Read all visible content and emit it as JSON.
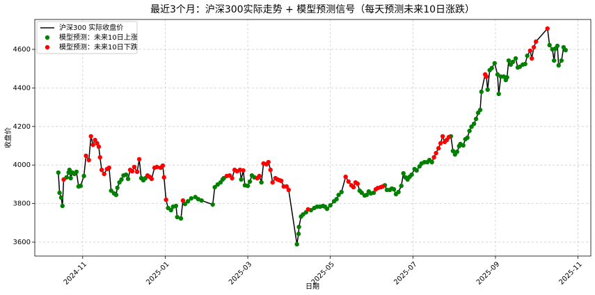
{
  "chart_data": {
    "type": "line",
    "title": "最近3个月：沪深300实际走势 + 模型预测信号（每天预测未来10日涨跌）",
    "xlabel": "日期",
    "ylabel": "收盘价",
    "grid": true,
    "legend": "upper left",
    "xlim": [
      -1.16,
      12.31
    ],
    "xticks": [
      {
        "value": 0,
        "label": "2024-11"
      },
      {
        "value": 2,
        "label": "2025-01"
      },
      {
        "value": 4,
        "label": "2025-03"
      },
      {
        "value": 6,
        "label": "2025-05"
      },
      {
        "value": 8,
        "label": "2025-07"
      },
      {
        "value": 10,
        "label": "2025-09"
      },
      {
        "value": 12,
        "label": "2025-11"
      }
    ],
    "ylim": [
      3528,
      4755
    ],
    "yticks": [
      3600,
      3800,
      4000,
      4200,
      4400,
      4600
    ],
    "x": [
      -0.59,
      -0.56,
      -0.52,
      -0.49,
      -0.46,
      -0.39,
      -0.34,
      -0.32,
      -0.29,
      -0.25,
      -0.2,
      -0.15,
      -0.1,
      -0.05,
      0.03,
      0.08,
      0.15,
      0.2,
      0.25,
      0.3,
      0.35,
      0.39,
      0.42,
      0.46,
      0.52,
      0.59,
      0.64,
      0.69,
      0.76,
      0.81,
      0.84,
      0.89,
      0.94,
      0.99,
      1.05,
      1.1,
      1.15,
      1.2,
      1.25,
      1.32,
      1.37,
      1.42,
      1.47,
      1.52,
      1.57,
      1.62,
      1.67,
      1.74,
      1.8,
      1.89,
      1.94,
      1.97,
      2.02,
      2.07,
      2.14,
      2.19,
      2.26,
      2.29,
      2.38,
      2.43,
      2.48,
      2.55,
      2.63,
      2.73,
      2.8,
      2.88,
      3.15,
      3.2,
      3.27,
      3.34,
      3.39,
      3.42,
      3.49,
      3.56,
      3.62,
      3.68,
      3.74,
      3.81,
      3.84,
      3.89,
      3.93,
      4.0,
      4.05,
      4.1,
      4.16,
      4.23,
      4.28,
      4.33,
      4.38,
      4.45,
      4.5,
      4.55,
      4.6,
      4.67,
      4.72,
      4.77,
      4.81,
      4.87,
      4.94,
      4.99,
      5.19,
      5.23,
      5.24,
      5.29,
      5.34,
      5.41,
      5.46,
      5.53,
      5.61,
      5.68,
      5.75,
      5.82,
      5.87,
      5.92,
      6.0,
      6.09,
      6.15,
      6.2,
      6.27,
      6.37,
      6.44,
      6.51,
      6.56,
      6.61,
      6.66,
      6.71,
      6.76,
      6.83,
      6.88,
      6.93,
      6.98,
      7.05,
      7.1,
      7.15,
      7.22,
      7.27,
      7.32,
      7.37,
      7.44,
      7.49,
      7.54,
      7.59,
      7.65,
      7.72,
      7.77,
      7.82,
      7.87,
      7.92,
      7.97,
      8.04,
      8.09,
      8.16,
      8.21,
      8.28,
      8.35,
      8.4,
      8.46,
      8.51,
      8.56,
      8.62,
      8.67,
      8.72,
      8.77,
      8.82,
      8.87,
      8.92,
      8.97,
      9.02,
      9.07,
      9.12,
      9.15,
      9.22,
      9.27,
      9.32,
      9.37,
      9.42,
      9.48,
      9.53,
      9.58,
      9.63,
      9.66,
      9.75,
      9.78,
      9.81,
      9.86,
      9.91,
      9.98,
      10.05,
      10.08,
      10.13,
      10.2,
      10.25,
      10.28,
      10.32,
      10.37,
      10.42,
      10.49,
      10.54,
      10.59,
      10.66,
      10.72,
      10.77,
      10.84,
      10.88,
      10.93,
      10.98,
      11.26,
      11.31,
      11.38,
      11.42,
      11.45,
      11.5,
      11.53,
      11.6,
      11.65,
      11.7
    ],
    "series": [
      {
        "name": "沪深300 实际收盘价",
        "color": "#000000",
        "values": [
          3961,
          3856,
          3831,
          3788,
          3925,
          3936,
          3961,
          3975,
          3932,
          3961,
          3954,
          3965,
          3889,
          3892,
          3943,
          4048,
          4026,
          4149,
          4105,
          4130,
          4113,
          4095,
          4040,
          3975,
          3954,
          3979,
          3986,
          3867,
          3853,
          3845,
          3882,
          3910,
          3925,
          3946,
          3950,
          3928,
          3975,
          3968,
          3990,
          3965,
          4030,
          3932,
          3921,
          3932,
          3946,
          3939,
          3928,
          3986,
          3990,
          3986,
          3997,
          3936,
          3820,
          3777,
          3766,
          3784,
          3788,
          3730,
          3723,
          3816,
          3798,
          3812,
          3827,
          3834,
          3823,
          3816,
          3795,
          3885,
          3899,
          3910,
          3925,
          3932,
          3943,
          3946,
          3932,
          3975,
          3968,
          3975,
          3925,
          3972,
          3895,
          3892,
          3914,
          3946,
          3936,
          3932,
          3943,
          3910,
          4008,
          4004,
          4015,
          3975,
          3910,
          3932,
          3925,
          3921,
          3918,
          3889,
          3889,
          3871,
          3589,
          3643,
          3679,
          3733,
          3744,
          3755,
          3770,
          3766,
          3777,
          3784,
          3784,
          3788,
          3784,
          3773,
          3791,
          3812,
          3823,
          3845,
          3860,
          3939,
          3914,
          3895,
          3885,
          3910,
          3903,
          3867,
          3856,
          3842,
          3845,
          3863,
          3853,
          3856,
          3874,
          3881,
          3885,
          3889,
          3895,
          3871,
          3871,
          3878,
          3874,
          3849,
          3860,
          3892,
          3957,
          3936,
          3925,
          3939,
          3950,
          3979,
          3972,
          3993,
          4008,
          4015,
          4015,
          4026,
          4015,
          4040,
          4062,
          4087,
          4113,
          4149,
          4120,
          4130,
          4145,
          4149,
          4073,
          4055,
          4069,
          4098,
          4109,
          4102,
          4134,
          4142,
          4177,
          4199,
          4214,
          4239,
          4271,
          4286,
          4380,
          4470,
          4459,
          4391,
          4492,
          4503,
          4528,
          4470,
          4369,
          4459,
          4459,
          4441,
          4455,
          4542,
          4521,
          4535,
          4553,
          4506,
          4510,
          4521,
          4524,
          4567,
          4593,
          4553,
          4611,
          4640,
          4708,
          4622,
          4600,
          4542,
          4604,
          4618,
          4517,
          4542,
          4611,
          4596
        ]
      },
      {
        "name": "模型预测：未来10日上涨",
        "color": "#008000",
        "x": [
          -0.59,
          -0.56,
          -0.52,
          -0.49,
          -0.39,
          -0.34,
          -0.32,
          -0.29,
          -0.25,
          -0.2,
          -0.15,
          -0.1,
          -0.05,
          0.03,
          0.69,
          0.76,
          0.81,
          0.84,
          0.89,
          0.94,
          0.99,
          1.05,
          1.1,
          1.42,
          1.47,
          1.52,
          2.07,
          2.14,
          2.19,
          2.26,
          2.29,
          2.38,
          2.48,
          2.55,
          2.63,
          2.73,
          2.8,
          2.88,
          3.15,
          3.2,
          3.27,
          3.34,
          3.39,
          3.42,
          3.84,
          3.93,
          4.0,
          4.05,
          4.1,
          4.16,
          4.33,
          5.19,
          5.23,
          5.24,
          5.29,
          5.34,
          5.41,
          5.53,
          5.61,
          5.68,
          5.75,
          5.82,
          5.87,
          5.92,
          6.0,
          6.09,
          6.15,
          6.2,
          6.27,
          6.71,
          6.76,
          6.83,
          6.88,
          6.93,
          6.98,
          7.05,
          7.32,
          7.37,
          7.44,
          7.49,
          7.54,
          7.59,
          7.65,
          7.72,
          7.77,
          7.82,
          7.87,
          7.92,
          7.97,
          8.04,
          8.09,
          8.16,
          8.21,
          8.28,
          8.35,
          8.4,
          8.46,
          8.92,
          8.97,
          9.02,
          9.07,
          9.12,
          9.15,
          9.22,
          9.27,
          9.32,
          9.37,
          9.42,
          9.48,
          9.53,
          9.58,
          9.63,
          9.66,
          9.81,
          9.86,
          9.91,
          9.98,
          10.05,
          10.08,
          10.13,
          10.2,
          10.25,
          10.28,
          10.32,
          10.37,
          10.42,
          10.49,
          10.54,
          10.59,
          10.66,
          10.72,
          10.77,
          11.31,
          11.38,
          11.42,
          11.45,
          11.5,
          11.53,
          11.6,
          11.65,
          11.7
        ],
        "values": [
          3961,
          3856,
          3831,
          3788,
          3936,
          3961,
          3975,
          3932,
          3961,
          3954,
          3965,
          3889,
          3892,
          3943,
          3867,
          3853,
          3845,
          3882,
          3910,
          3925,
          3946,
          3950,
          3928,
          3932,
          3921,
          3932,
          3777,
          3766,
          3784,
          3788,
          3730,
          3723,
          3798,
          3812,
          3827,
          3834,
          3823,
          3816,
          3795,
          3885,
          3899,
          3910,
          3925,
          3932,
          3925,
          3895,
          3892,
          3914,
          3946,
          3936,
          3910,
          3589,
          3643,
          3679,
          3733,
          3744,
          3755,
          3766,
          3777,
          3784,
          3784,
          3788,
          3784,
          3773,
          3791,
          3812,
          3823,
          3845,
          3860,
          3867,
          3856,
          3842,
          3845,
          3863,
          3853,
          3856,
          3895,
          3871,
          3871,
          3878,
          3874,
          3849,
          3860,
          3892,
          3957,
          3936,
          3925,
          3939,
          3950,
          3979,
          3972,
          3993,
          4008,
          4015,
          4015,
          4026,
          4015,
          4149,
          4073,
          4055,
          4069,
          4098,
          4109,
          4102,
          4134,
          4142,
          4177,
          4199,
          4214,
          4239,
          4271,
          4286,
          4380,
          4391,
          4492,
          4503,
          4528,
          4470,
          4369,
          4459,
          4459,
          4441,
          4455,
          4542,
          4521,
          4535,
          4553,
          4506,
          4510,
          4521,
          4524,
          4567,
          4622,
          4600,
          4542,
          4604,
          4618,
          4517,
          4542,
          4611,
          4596
        ]
      },
      {
        "name": "模型预测：未来10日下跌",
        "color": "#ff0000",
        "x": [
          -0.46,
          0.08,
          0.15,
          0.2,
          0.25,
          0.3,
          0.35,
          0.39,
          0.42,
          0.46,
          0.52,
          0.59,
          0.64,
          1.15,
          1.2,
          1.25,
          1.32,
          1.37,
          1.57,
          1.62,
          1.67,
          1.74,
          1.8,
          1.89,
          1.94,
          1.97,
          2.02,
          2.43,
          3.49,
          3.56,
          3.62,
          3.68,
          3.74,
          3.81,
          3.89,
          4.23,
          4.28,
          4.38,
          4.45,
          4.5,
          4.55,
          4.6,
          4.67,
          4.72,
          4.77,
          4.81,
          4.87,
          4.94,
          4.99,
          5.46,
          6.37,
          6.44,
          6.51,
          6.56,
          6.61,
          6.66,
          7.1,
          7.15,
          7.22,
          7.27,
          8.51,
          8.56,
          8.62,
          8.67,
          8.72,
          8.77,
          8.82,
          8.87,
          9.75,
          9.78,
          10.84,
          10.88,
          10.93,
          10.98,
          11.26
        ],
        "values": [
          3925,
          4048,
          4026,
          4149,
          4105,
          4130,
          4113,
          4095,
          4040,
          3975,
          3954,
          3979,
          3986,
          3975,
          3968,
          3990,
          3965,
          4030,
          3946,
          3939,
          3928,
          3986,
          3990,
          3986,
          3997,
          3936,
          3820,
          3816,
          3943,
          3946,
          3932,
          3975,
          3968,
          3975,
          3972,
          3932,
          3943,
          4008,
          4004,
          4015,
          3975,
          3910,
          3932,
          3925,
          3921,
          3918,
          3889,
          3889,
          3871,
          3770,
          3939,
          3914,
          3895,
          3885,
          3910,
          3903,
          3874,
          3881,
          3885,
          3889,
          4040,
          4062,
          4087,
          4113,
          4149,
          4120,
          4130,
          4145,
          4470,
          4459,
          4593,
          4553,
          4611,
          4640,
          4708
        ]
      }
    ]
  }
}
